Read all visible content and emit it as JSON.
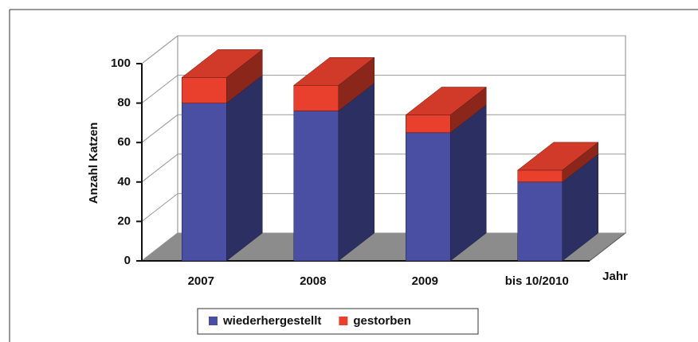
{
  "chart_data": {
    "type": "bar3d_stacked",
    "categories": [
      "2007",
      "2008",
      "2009",
      "bis 10/2010"
    ],
    "series": [
      {
        "name": "wiederhergestellt",
        "color": "#4a4fa3",
        "values": [
          80,
          76,
          65,
          40
        ]
      },
      {
        "name": "gestorben",
        "color": "#e8402d",
        "values": [
          13,
          13,
          9,
          6
        ]
      }
    ],
    "ylabel": "Anzahl Katzen",
    "xlabel": "Jahr",
    "ylim": [
      0,
      100
    ],
    "yticks": [
      0,
      20,
      40,
      60,
      80,
      100
    ],
    "grid": true,
    "legend": "bottom"
  }
}
